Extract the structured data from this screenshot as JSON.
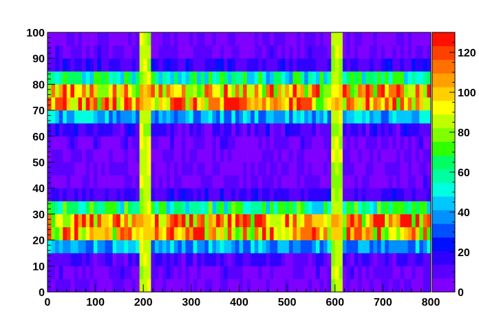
{
  "chart_data": {
    "type": "heatmap",
    "title": "",
    "xlabel": "",
    "ylabel": "",
    "x_range": [
      0,
      800
    ],
    "y_range": [
      0,
      100
    ],
    "z_range": [
      0,
      130
    ],
    "x_ticks": [
      "0",
      "100",
      "200",
      "300",
      "400",
      "500",
      "600",
      "700",
      "800"
    ],
    "y_ticks": [
      "0",
      "10",
      "20",
      "30",
      "40",
      "50",
      "60",
      "70",
      "80",
      "90",
      "100"
    ],
    "z_ticks": [
      "0",
      "20",
      "40",
      "60",
      "80",
      "100",
      "120"
    ],
    "grid": false,
    "legend": "colorbar-right",
    "x_bins": 100,
    "y_bins": 20,
    "row_levels": [
      {
        "y_from": 0,
        "y_to": 5,
        "mean_value": 5
      },
      {
        "y_from": 5,
        "y_to": 10,
        "mean_value": 7
      },
      {
        "y_from": 10,
        "y_to": 15,
        "mean_value": 12
      },
      {
        "y_from": 15,
        "y_to": 20,
        "mean_value": 40
      },
      {
        "y_from": 20,
        "y_to": 25,
        "mean_value": 100
      },
      {
        "y_from": 25,
        "y_to": 30,
        "mean_value": 104
      },
      {
        "y_from": 30,
        "y_to": 35,
        "mean_value": 60
      },
      {
        "y_from": 35,
        "y_to": 40,
        "mean_value": 15
      },
      {
        "y_from": 40,
        "y_to": 45,
        "mean_value": 6
      },
      {
        "y_from": 45,
        "y_to": 50,
        "mean_value": 6
      },
      {
        "y_from": 50,
        "y_to": 55,
        "mean_value": 6
      },
      {
        "y_from": 55,
        "y_to": 60,
        "mean_value": 7
      },
      {
        "y_from": 60,
        "y_to": 65,
        "mean_value": 14
      },
      {
        "y_from": 65,
        "y_to": 70,
        "mean_value": 42
      },
      {
        "y_from": 70,
        "y_to": 75,
        "mean_value": 104
      },
      {
        "y_from": 75,
        "y_to": 80,
        "mean_value": 100
      },
      {
        "y_from": 80,
        "y_to": 85,
        "mean_value": 58
      },
      {
        "y_from": 85,
        "y_to": 90,
        "mean_value": 15
      },
      {
        "y_from": 90,
        "y_to": 95,
        "mean_value": 7
      },
      {
        "y_from": 95,
        "y_to": 100,
        "mean_value": 5
      }
    ],
    "vertical_bands": [
      {
        "x_from": 192,
        "x_to": 216,
        "value": 85
      },
      {
        "x_from": 592,
        "x_to": 616,
        "value": 85
      }
    ],
    "palette": [
      "#7f00ff",
      "#5a00ff",
      "#3000ff",
      "#0010ff",
      "#0050ff",
      "#0090ff",
      "#00c8ff",
      "#00ffe0",
      "#00ffa0",
      "#00ff60",
      "#30ff00",
      "#80ff00",
      "#c0ff00",
      "#ffff00",
      "#ffd000",
      "#ffa000",
      "#ff7000",
      "#ff4000",
      "#ff1000"
    ]
  }
}
